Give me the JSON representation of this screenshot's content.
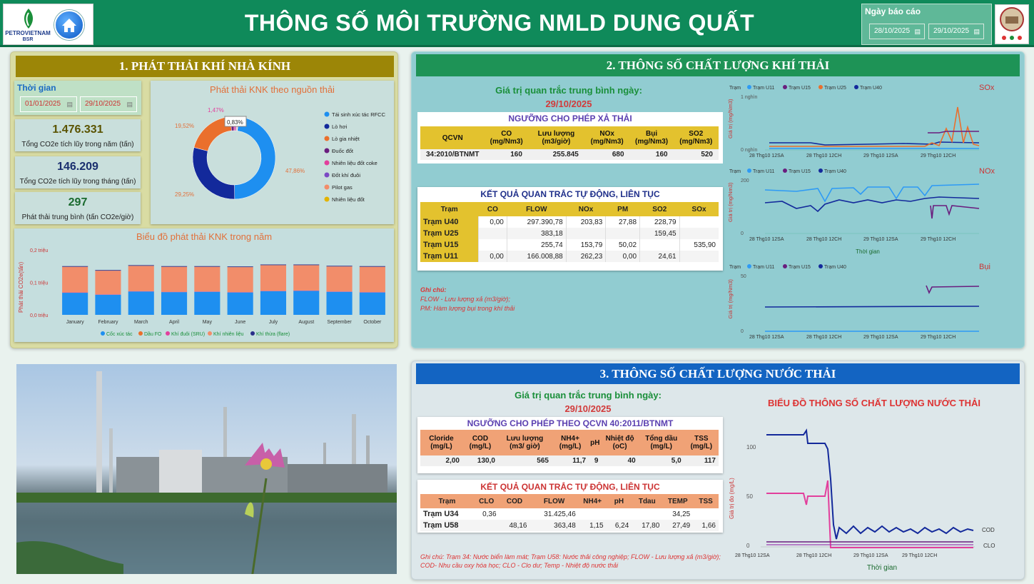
{
  "header": {
    "title": "THÔNG SỐ MÔI TRƯỜNG NMLD DUNG QUẤT",
    "logo_text_1": "PETROVIETNAM",
    "logo_text_2": "BSR",
    "report_date_label": "Ngày báo cáo",
    "report_date_from": "28/10/2025",
    "report_date_to": "29/10/2025"
  },
  "section1": {
    "title": "1. PHÁT THẢI KHÍ NHÀ KÍNH",
    "time_label": "Thời gian",
    "date_from": "01/01/2025",
    "date_to": "29/10/2025",
    "kpis": [
      {
        "value": "1.476.331",
        "label": "Tổng CO2e tích lũy trong năm (tấn)",
        "color": "#5a5300"
      },
      {
        "value": "146.209",
        "label": "Tổng CO2e tích lũy trong tháng (tấn)",
        "color": "#1a2e6e"
      },
      {
        "value": "297",
        "label": "Phát thải trung bình (tấn CO2e/giờ)",
        "color": "#1a6a2e"
      }
    ],
    "donut_title": "Phát thải KNK theo nguồn thải",
    "donut_labels": [
      "47,86%",
      "29,25%",
      "19,52%",
      "1,47%",
      "0,83%"
    ],
    "donut_legend": [
      {
        "name": "Tái sinh xúc tác RFCC",
        "color": "#1e8ff0"
      },
      {
        "name": "Lò hơi",
        "color": "#13299b"
      },
      {
        "name": "Lò gia nhiệt",
        "color": "#ea6f2c"
      },
      {
        "name": "Đuốc đốt",
        "color": "#6a1d7e"
      },
      {
        "name": "Nhiên liệu đốt coke",
        "color": "#e23f9c"
      },
      {
        "name": "Đốt khí đuôi",
        "color": "#7b49c4"
      },
      {
        "name": "Pilot gas",
        "color": "#f28d6a"
      },
      {
        "name": "Nhiên liệu đốt",
        "color": "#e3b300"
      }
    ],
    "bar_title": "Biểu đồ phát thải KNK trong năm",
    "bar_ylabel": "Phát thải CO2e(tấn)",
    "bar_legend": [
      {
        "name": "Cốc xúc tác",
        "color": "#1e8ff0"
      },
      {
        "name": "Dầu FO",
        "color": "#ea6f2c"
      },
      {
        "name": "Khí đuôi (SRU)",
        "color": "#e23f9c"
      },
      {
        "name": "Khí nhiên liệu",
        "color": "#f28d6a"
      },
      {
        "name": "Khí thừa (flare)",
        "color": "#2a2e8a"
      }
    ]
  },
  "section2": {
    "title": "2. THÔNG SỐ CHẤT LƯỢNG KHÍ THẢI",
    "avg_label": "Giá trị quan trắc trung bình ngày:",
    "avg_date": "29/10/2025",
    "limit_title": "NGƯỠNG CHO PHÉP XẢ THẢI",
    "limit_headers": [
      "QCVN",
      "CO (mg/Nm3)",
      "Lưu lượng (m3/giờ)",
      "NOx (mg/Nm3)",
      "Bụi (mg/Nm3)",
      "SO2 (mg/Nm3)"
    ],
    "limit_row": [
      "34:2010/BTNMT",
      "160",
      "255.845",
      "680",
      "160",
      "520"
    ],
    "result_title": "KẾT QUẢ QUAN TRẮC TỰ ĐỘNG, LIÊN TỤC",
    "result_headers": [
      "Trạm",
      "CO",
      "FLOW",
      "NOx",
      "PM",
      "SO2",
      "SOx"
    ],
    "result_rows": [
      [
        "Trạm U40",
        "0,00",
        "297.390,78",
        "203,83",
        "27,88",
        "228,79",
        ""
      ],
      [
        "Trạm U25",
        "",
        "383,18",
        "",
        "",
        "159,45",
        ""
      ],
      [
        "Trạm U15",
        "",
        "255,74",
        "153,79",
        "50,02",
        "",
        "535,90"
      ],
      [
        "Trạm U11",
        "0,00",
        "166.008,88",
        "262,23",
        "0,00",
        "24,61",
        ""
      ]
    ],
    "note_title": "Ghi chú:",
    "note_1": "FLOW - Lưu lượng xả (m3/giờ);",
    "note_2": "PM: Hàm lượng bụi trong khí thải",
    "chart_titles": [
      "SOx",
      "NOx",
      "Bụi"
    ],
    "chart_ylabel": "Giá trị (mg/Nm3)",
    "chart_xlabel": "Thời gian",
    "x_ticks": [
      "28 Thg10 12SA",
      "28 Thg10 12CH",
      "29 Thg10 12SA",
      "29 Thg10 12CH"
    ],
    "legend_tram": "Trạm",
    "legend_u11": "Trạm U11",
    "legend_u15": "Trạm U15",
    "legend_u25": "Trạm U25",
    "legend_u40": "Trạm U40",
    "sox_ticks": [
      "1 nghìn",
      "0 nghìn"
    ],
    "nox_ticks": [
      "200",
      "0"
    ],
    "dust_ticks": [
      "50",
      "0"
    ]
  },
  "section3": {
    "title": "3. THÔNG SỐ CHẤT LƯỢNG NƯỚC THẢI",
    "avg_label": "Giá trị quan trắc trung bình ngày:",
    "avg_date": "29/10/2025",
    "limit_title": "NGƯỠNG CHO PHÉP THEO QCVN 40:2011/BTNMT",
    "limit_headers": [
      "Cloride (mg/L)",
      "COD (mg/L)",
      "Lưu lượng (m3/ giờ)",
      "NH4+ (mg/L)",
      "pH",
      "Nhiệt độ (oC)",
      "Tổng dầu (mg/L)",
      "TSS (mg/L)"
    ],
    "limit_row": [
      "2,00",
      "130,0",
      "565",
      "11,7",
      "9",
      "40",
      "5,0",
      "117"
    ],
    "result_title": "KẾT QUẢ QUAN TRẮC TỰ ĐỘNG, LIÊN TỤC",
    "result_headers": [
      "Trạm",
      "CLO",
      "COD",
      "FLOW",
      "NH4+",
      "pH",
      "Tdau",
      "TEMP",
      "TSS"
    ],
    "result_rows": [
      [
        "Trạm U34",
        "0,36",
        "",
        "31.425,46",
        "",
        "",
        "",
        "34,25",
        ""
      ],
      [
        "Trạm U58",
        "",
        "48,16",
        "363,48",
        "1,15",
        "6,24",
        "17,80",
        "27,49",
        "1,66"
      ]
    ],
    "note": "Ghi chú: Trạm 34: Nước biển làm mát; Trạm U58: Nước thải công nghiệp; FLOW - Lưu lượng xả (m3/giờ); COD- Nhu cầu oxy hóa học; CLO - Clo dư; Temp - Nhiệt độ nước thải",
    "chart_title": "BIỂU ĐỒ THÔNG SỐ CHẤT LƯỢNG NƯỚC THẢI",
    "chart_ylabel": "Giá trị đo (mg/L)",
    "chart_xlabel": "Thời gian",
    "y_ticks": [
      "100",
      "50",
      "0"
    ],
    "x_ticks": [
      "28 Thg10 12SA",
      "28 Thg10 12CH",
      "29 Thg10 12SA",
      "29 Thg10 12CH"
    ],
    "series_cod": "COD",
    "series_clo": "CLO"
  },
  "chart_data": [
    {
      "type": "pie",
      "title": "Phát thải KNK theo nguồn thải",
      "categories": [
        "Tái sinh xúc tác RFCC",
        "Lò hơi",
        "Lò gia nhiệt",
        "Đuốc đốt",
        "Nhiên liệu đốt coke",
        "Đốt khí đuôi",
        "Pilot gas",
        "Nhiên liệu đốt"
      ],
      "values": [
        47.86,
        29.25,
        19.52,
        1.47,
        0.83,
        0.5,
        0.4,
        0.17
      ]
    },
    {
      "type": "bar",
      "title": "Biểu đồ phát thải KNK trong năm",
      "ylabel": "Phát thải CO2e(tấn)",
      "y_ticks": [
        "0,2 triệu",
        "0,1 triệu",
        "0,0 triệu"
      ],
      "ylim": [
        0,
        0.2
      ],
      "categories": [
        "January",
        "February",
        "March",
        "April",
        "May",
        "June",
        "July",
        "August",
        "September",
        "October"
      ],
      "series": [
        {
          "name": "Cốc xúc tác",
          "values": [
            0.068,
            0.062,
            0.072,
            0.07,
            0.071,
            0.069,
            0.073,
            0.074,
            0.071,
            0.069
          ]
        },
        {
          "name": "Dầu FO",
          "values": [
            0.0,
            0.0,
            0.0,
            0.0,
            0.0,
            0.0,
            0.0,
            0.0,
            0.0,
            0.0
          ]
        },
        {
          "name": "Khí đuôi (SRU)",
          "values": [
            0.001,
            0.001,
            0.001,
            0.001,
            0.001,
            0.001,
            0.001,
            0.001,
            0.001,
            0.001
          ]
        },
        {
          "name": "Khí nhiên liệu",
          "values": [
            0.079,
            0.073,
            0.078,
            0.077,
            0.076,
            0.077,
            0.079,
            0.078,
            0.077,
            0.078
          ]
        },
        {
          "name": "Khí thừa (flare)",
          "values": [
            0.002,
            0.002,
            0.002,
            0.002,
            0.002,
            0.002,
            0.002,
            0.002,
            0.002,
            0.002
          ]
        }
      ]
    }
  ]
}
